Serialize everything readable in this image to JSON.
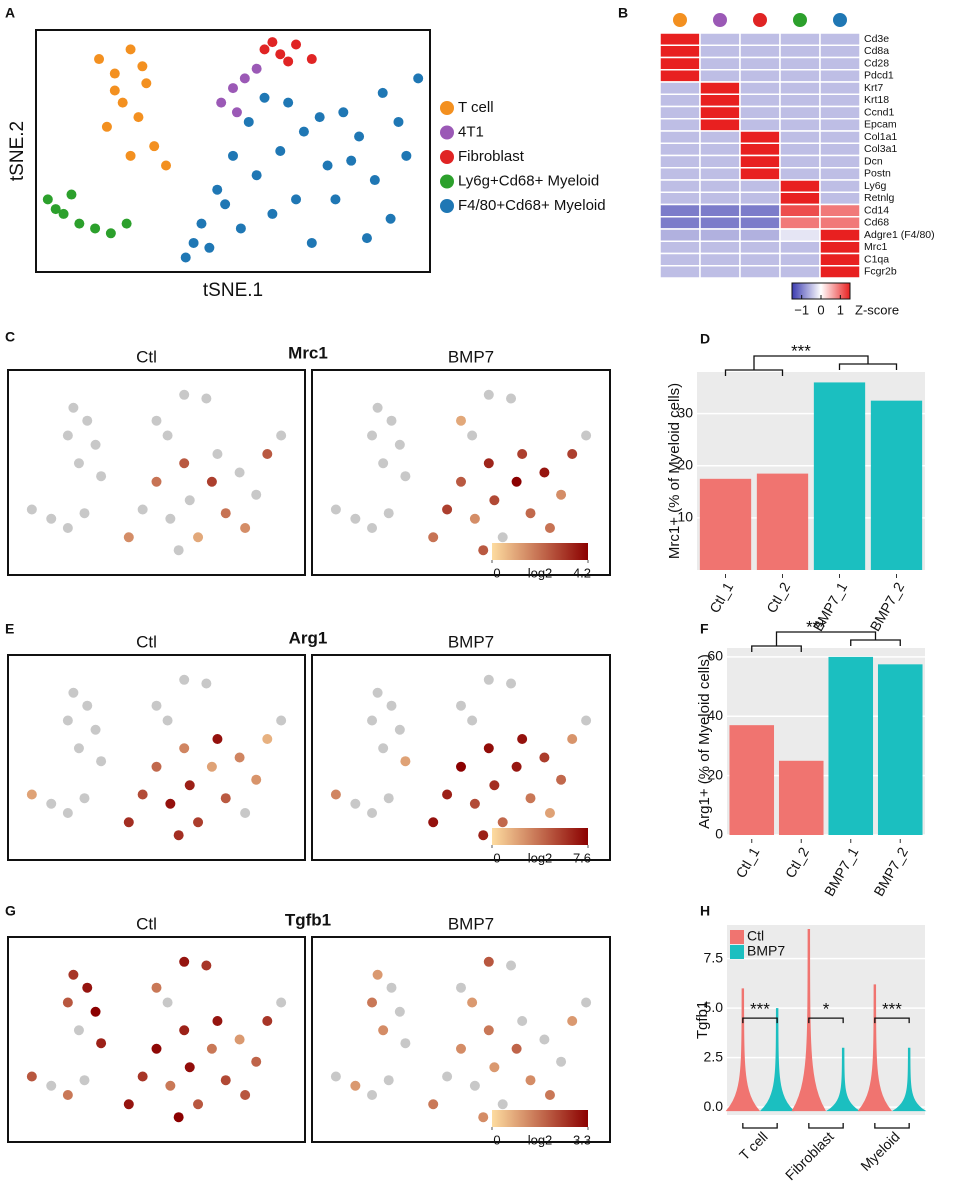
{
  "panel_labels": [
    "A",
    "B",
    "C",
    "D",
    "E",
    "F",
    "G",
    "H"
  ],
  "chart_data": [
    {
      "type": "scatter",
      "xlabel": "tSNE.1",
      "ylabel": "tSNE.2",
      "xlim": [
        0,
        100
      ],
      "ylim": [
        0,
        100
      ],
      "legend": "right",
      "series": [
        {
          "name": "T cell",
          "color": "#f39020",
          "x": [
            16,
            20,
            24,
            28,
            22,
            26,
            18,
            30,
            24,
            20,
            27,
            33
          ],
          "y": [
            88,
            82,
            92,
            78,
            70,
            64,
            60,
            52,
            48,
            75,
            85,
            44
          ]
        },
        {
          "name": "4T1",
          "color": "#9b59b6",
          "x": [
            47,
            50,
            53,
            56,
            51
          ],
          "y": [
            70,
            76,
            80,
            84,
            66
          ]
        },
        {
          "name": "Fibroblast",
          "color": "#e02424",
          "x": [
            58,
            62,
            66,
            70,
            64,
            60
          ],
          "y": [
            92,
            90,
            94,
            88,
            87,
            95
          ]
        },
        {
          "name": "Ly6g+Cd68+ Myeloid",
          "color": "#2ca02c",
          "x": [
            3,
            7,
            11,
            15,
            19,
            23,
            9,
            5
          ],
          "y": [
            30,
            24,
            20,
            18,
            16,
            20,
            32,
            26
          ]
        },
        {
          "name": "F4/80+Cd68+ Myeloid",
          "color": "#1f77b4",
          "x": [
            38,
            42,
            46,
            50,
            54,
            58,
            62,
            66,
            70,
            74,
            78,
            82,
            86,
            90,
            94,
            97,
            44,
            52,
            60,
            68,
            76,
            84,
            92,
            56,
            64,
            72,
            80,
            88,
            48,
            40
          ],
          "y": [
            6,
            20,
            34,
            48,
            62,
            72,
            50,
            30,
            12,
            44,
            66,
            56,
            38,
            22,
            48,
            80,
            10,
            18,
            24,
            58,
            30,
            14,
            62,
            40,
            70,
            64,
            46,
            74,
            28,
            12
          ]
        }
      ]
    },
    {
      "type": "heatmap",
      "column_colors": [
        "#f39020",
        "#9b59b6",
        "#e02424",
        "#2ca02c",
        "#1f77b4"
      ],
      "rows": [
        "Cd3e",
        "Cd8a",
        "Cd28",
        "Pdcd1",
        "Krt7",
        "Krt18",
        "Ccnd1",
        "Epcam",
        "Col1a1",
        "Col3a1",
        "Dcn",
        "Postn",
        "Ly6g",
        "Retnlg",
        "Cd14",
        "Cd68",
        "Adgre1 (F4/80)",
        "Mrc1",
        "C1qa",
        "Fcgr2b"
      ],
      "values": [
        [
          1.5,
          -0.5,
          -0.5,
          -0.5,
          -0.5
        ],
        [
          1.5,
          -0.5,
          -0.5,
          -0.5,
          -0.5
        ],
        [
          1.5,
          -0.5,
          -0.5,
          -0.5,
          -0.5
        ],
        [
          1.5,
          -0.5,
          -0.5,
          -0.5,
          -0.5
        ],
        [
          -0.5,
          1.5,
          -0.5,
          -0.5,
          -0.5
        ],
        [
          -0.5,
          1.5,
          -0.5,
          -0.5,
          -0.5
        ],
        [
          -0.5,
          1.5,
          -0.5,
          -0.5,
          -0.5
        ],
        [
          -0.5,
          1.5,
          -0.5,
          -0.5,
          -0.5
        ],
        [
          -0.5,
          -0.5,
          1.5,
          -0.5,
          -0.5
        ],
        [
          -0.5,
          -0.5,
          1.5,
          -0.5,
          -0.5
        ],
        [
          -0.5,
          -0.5,
          1.5,
          -0.5,
          -0.5
        ],
        [
          -0.5,
          -0.5,
          1.5,
          -0.5,
          -0.5
        ],
        [
          -0.5,
          -0.5,
          -0.5,
          1.5,
          -0.5
        ],
        [
          -0.5,
          -0.5,
          -0.5,
          1.5,
          -0.5
        ],
        [
          -1,
          -1,
          -1,
          1.2,
          0.9
        ],
        [
          -1,
          -1,
          -1,
          0.9,
          0.9
        ],
        [
          -0.6,
          -0.6,
          -0.6,
          -0.2,
          1.5
        ],
        [
          -0.5,
          -0.5,
          -0.5,
          -0.5,
          1.5
        ],
        [
          -0.5,
          -0.5,
          -0.5,
          -0.5,
          1.5
        ],
        [
          -0.5,
          -0.5,
          -0.5,
          -0.5,
          1.5
        ]
      ],
      "clim": [
        -1.5,
        1.5
      ],
      "cticks": [
        {
          "value": -1,
          "label": "−1"
        },
        0,
        1
      ],
      "clabel": "Z-score"
    },
    {
      "type": "feature",
      "title": "Mrc1",
      "xlim": [
        0,
        100
      ],
      "ylim": [
        0,
        100
      ],
      "x": [
        20,
        25,
        18,
        28,
        22,
        30,
        50,
        54,
        60,
        68,
        5,
        12,
        18,
        24,
        40,
        45,
        50,
        55,
        60,
        62,
        65,
        70,
        72,
        75,
        80,
        82,
        86,
        90,
        95,
        58
      ],
      "y": [
        85,
        78,
        70,
        65,
        55,
        48,
        78,
        70,
        92,
        90,
        30,
        25,
        20,
        28,
        15,
        30,
        45,
        25,
        55,
        35,
        15,
        45,
        60,
        28,
        50,
        20,
        38,
        60,
        70,
        8
      ],
      "panels": [
        {
          "name": "Ctl",
          "values": [
            0,
            0,
            0,
            0,
            0,
            0,
            0,
            0,
            0,
            0,
            0,
            0,
            0,
            0,
            1.5,
            0,
            2.0,
            0,
            2.5,
            0,
            1.0,
            3.0,
            0,
            2.0,
            0,
            1.5,
            0,
            2.5,
            0,
            0
          ]
        },
        {
          "name": "BMP7",
          "values": [
            0,
            0,
            0,
            0,
            0,
            0,
            1.0,
            0,
            0,
            0,
            0,
            0,
            0,
            0,
            2.0,
            3.0,
            2.5,
            1.5,
            3.5,
            2.8,
            0,
            4.2,
            3.0,
            2.2,
            3.8,
            2.0,
            1.5,
            3.0,
            0,
            2.5
          ]
        }
      ],
      "clim": [
        0,
        4.2
      ],
      "cticks": [
        0,
        4.2
      ],
      "clabel": "log2"
    },
    {
      "type": "bar",
      "categories": [
        "Ctl_1",
        "Ctl_2",
        "BMP7_1",
        "BMP7_2"
      ],
      "values": [
        17.5,
        18.5,
        36,
        32.5
      ],
      "colors": [
        "#f07470",
        "#f07470",
        "#1bbfc0",
        "#1bbfc0"
      ],
      "ylabel": "Mrc1+ (% of Myeloid cells)",
      "ylim": [
        0,
        38
      ],
      "yticks": [
        10,
        20,
        30
      ],
      "grid": true,
      "annotation": "***"
    },
    {
      "type": "feature",
      "title": "Arg1",
      "xlim": [
        0,
        100
      ],
      "ylim": [
        0,
        100
      ],
      "x": [
        20,
        25,
        18,
        28,
        22,
        30,
        50,
        54,
        60,
        68,
        5,
        12,
        18,
        24,
        40,
        45,
        50,
        55,
        60,
        62,
        65,
        70,
        72,
        75,
        80,
        82,
        86,
        90,
        95,
        58
      ],
      "y": [
        85,
        78,
        70,
        65,
        55,
        48,
        78,
        70,
        92,
        90,
        30,
        25,
        20,
        28,
        15,
        30,
        45,
        25,
        55,
        35,
        15,
        45,
        60,
        28,
        50,
        20,
        38,
        60,
        70,
        8
      ],
      "panels": [
        {
          "name": "Ctl",
          "values": [
            0,
            0,
            0,
            0,
            0,
            0,
            0,
            0,
            0,
            0,
            2.0,
            0,
            0,
            0,
            6.0,
            5.0,
            4.0,
            7.0,
            3.0,
            6.5,
            5.5,
            2.0,
            7.0,
            4.5,
            3.0,
            0,
            2.5,
            1.5,
            0,
            6.0
          ]
        },
        {
          "name": "BMP7",
          "values": [
            0,
            0,
            0,
            0,
            0,
            2.0,
            0,
            0,
            0,
            0,
            3.0,
            0,
            0,
            0,
            7.0,
            6.5,
            7.6,
            5.0,
            7.2,
            6.0,
            4.0,
            6.8,
            7.0,
            3.5,
            5.5,
            2.0,
            4.0,
            2.5,
            0,
            6.5
          ]
        }
      ],
      "clim": [
        0,
        7.6
      ],
      "cticks": [
        0,
        7.6
      ],
      "clabel": "log2"
    },
    {
      "type": "bar",
      "categories": [
        "Ctl_1",
        "Ctl_2",
        "BMP7_1",
        "BMP7_2"
      ],
      "values": [
        37,
        25,
        60,
        57.5
      ],
      "colors": [
        "#f07470",
        "#f07470",
        "#1bbfc0",
        "#1bbfc0"
      ],
      "ylabel": "Arg1+ (% of Myeloid cells)",
      "ylim": [
        0,
        63
      ],
      "yticks": [
        0,
        20,
        40,
        60
      ],
      "grid": true,
      "annotation": "***"
    },
    {
      "type": "feature",
      "title": "Tgfb1",
      "xlim": [
        0,
        100
      ],
      "ylim": [
        0,
        100
      ],
      "x": [
        20,
        25,
        18,
        28,
        22,
        30,
        50,
        54,
        60,
        68,
        5,
        12,
        18,
        24,
        40,
        45,
        50,
        55,
        60,
        62,
        65,
        70,
        72,
        75,
        80,
        82,
        86,
        90,
        95,
        58
      ],
      "y": [
        85,
        78,
        70,
        65,
        55,
        48,
        78,
        70,
        92,
        90,
        30,
        25,
        20,
        28,
        15,
        30,
        45,
        25,
        55,
        35,
        15,
        45,
        60,
        28,
        50,
        20,
        38,
        60,
        70,
        8
      ],
      "panels": [
        {
          "name": "Ctl",
          "values": [
            2.5,
            3.0,
            2.0,
            3.3,
            0,
            2.8,
            1.5,
            0,
            3.0,
            2.5,
            2.0,
            0,
            1.5,
            0,
            3.0,
            2.5,
            3.2,
            1.5,
            2.8,
            3.1,
            2.0,
            1.5,
            3.0,
            2.2,
            1.0,
            2.0,
            1.8,
            2.5,
            0,
            3.3
          ]
        },
        {
          "name": "BMP7",
          "values": [
            1.0,
            0,
            1.5,
            0,
            1.2,
            0,
            0,
            1.0,
            2.0,
            0,
            0,
            1.0,
            0,
            0,
            1.5,
            0,
            1.2,
            0,
            1.5,
            1.0,
            0,
            1.8,
            0,
            1.2,
            0,
            1.5,
            0,
            1.0,
            0,
            1.2
          ]
        }
      ],
      "clim": [
        0,
        3.3
      ],
      "cticks": [
        0,
        3.3
      ],
      "clabel": "log2"
    },
    {
      "type": "violin",
      "categories": [
        "T cell",
        "Fibroblast",
        "Myeloid"
      ],
      "series": [
        {
          "name": "Ctl",
          "color": "#f07470",
          "values": [
            6.0,
            9.0,
            6.2
          ]
        },
        {
          "name": "BMP7",
          "color": "#1bbfc0",
          "values": [
            5.0,
            3.0,
            3.0
          ]
        }
      ],
      "ylabel": "Tgfb1",
      "ylim": [
        -0.4,
        9.2
      ],
      "yticks": [
        {
          "value": 0,
          "label": "0.0"
        },
        2.5,
        {
          "value": 5,
          "label": "5.0"
        },
        7.5
      ],
      "grid": true,
      "legend": "upper left",
      "annotations": [
        "***",
        "*",
        "***"
      ]
    }
  ]
}
